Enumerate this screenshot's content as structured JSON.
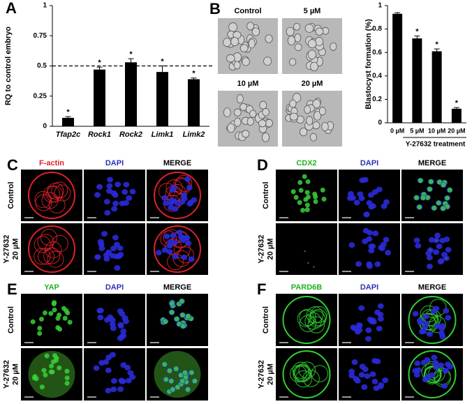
{
  "chart_data": [
    {
      "type": "bar",
      "panel_label": "A",
      "ylabel": "RQ to control embryo",
      "categories": [
        "Tfap2c",
        "Rock1",
        "Rock2",
        "Limk1",
        "Limk2"
      ],
      "values": [
        0.07,
        0.47,
        0.53,
        0.45,
        0.39
      ],
      "errors": [
        0.01,
        0.02,
        0.03,
        0.05,
        0.01
      ],
      "annotations": [
        "*",
        "*",
        "*",
        "*",
        "*"
      ],
      "color": "#000000",
      "reference_line": 0.5,
      "ylim": [
        0,
        1
      ],
      "yticks": [
        0,
        0.25,
        0.5,
        0.75,
        1
      ],
      "grid": false
    },
    {
      "type": "bar",
      "ylabel": "Blastocyst formation (%)",
      "xlabel": "Y-27632 treatment",
      "categories": [
        "0 µM",
        "5 µM",
        "10 µM",
        "20 µM"
      ],
      "values": [
        0.93,
        0.72,
        0.61,
        0.12
      ],
      "errors": [
        0.01,
        0.02,
        0.02,
        0.01
      ],
      "annotations": [
        null,
        "*",
        "*",
        "*"
      ],
      "color": "#000000",
      "ylim": [
        0,
        1
      ],
      "yticks": [
        0,
        0.2,
        0.4,
        0.6,
        0.8,
        1
      ],
      "grid": false
    }
  ],
  "panels": {
    "B": {
      "label": "B",
      "images": [
        "Control",
        "5 µM",
        "10 µM",
        "20 µM"
      ]
    },
    "C": {
      "label": "C",
      "headers": [
        {
          "text": "F-actin",
          "color": "#e0202a"
        },
        {
          "text": "DAPI",
          "color": "#2a30b8"
        },
        {
          "text": "MERGE",
          "color": "#000000"
        }
      ],
      "rows": [
        [
          "Control"
        ],
        [
          "Y-27632",
          "20 µM"
        ]
      ]
    },
    "D": {
      "label": "D",
      "headers": [
        {
          "text": "CDX2",
          "color": "#22b022"
        },
        {
          "text": "DAPI",
          "color": "#2a30b8"
        },
        {
          "text": "MERGE",
          "color": "#000000"
        }
      ],
      "rows": [
        [
          "Control"
        ],
        [
          "Y-27632",
          "20 µM"
        ]
      ]
    },
    "E": {
      "label": "E",
      "headers": [
        {
          "text": "YAP",
          "color": "#22b022"
        },
        {
          "text": "DAPI",
          "color": "#2a30b8"
        },
        {
          "text": "MERGE",
          "color": "#000000"
        }
      ],
      "rows": [
        [
          "Control"
        ],
        [
          "Y-27632",
          "20 µM"
        ]
      ]
    },
    "F": {
      "label": "F",
      "headers": [
        {
          "text": "PARD6B",
          "color": "#22b022"
        },
        {
          "text": "DAPI",
          "color": "#2a30b8"
        },
        {
          "text": "MERGE",
          "color": "#000000"
        }
      ],
      "rows": [
        [
          "Control"
        ],
        [
          "Y-27632",
          "20 µM"
        ]
      ]
    }
  }
}
